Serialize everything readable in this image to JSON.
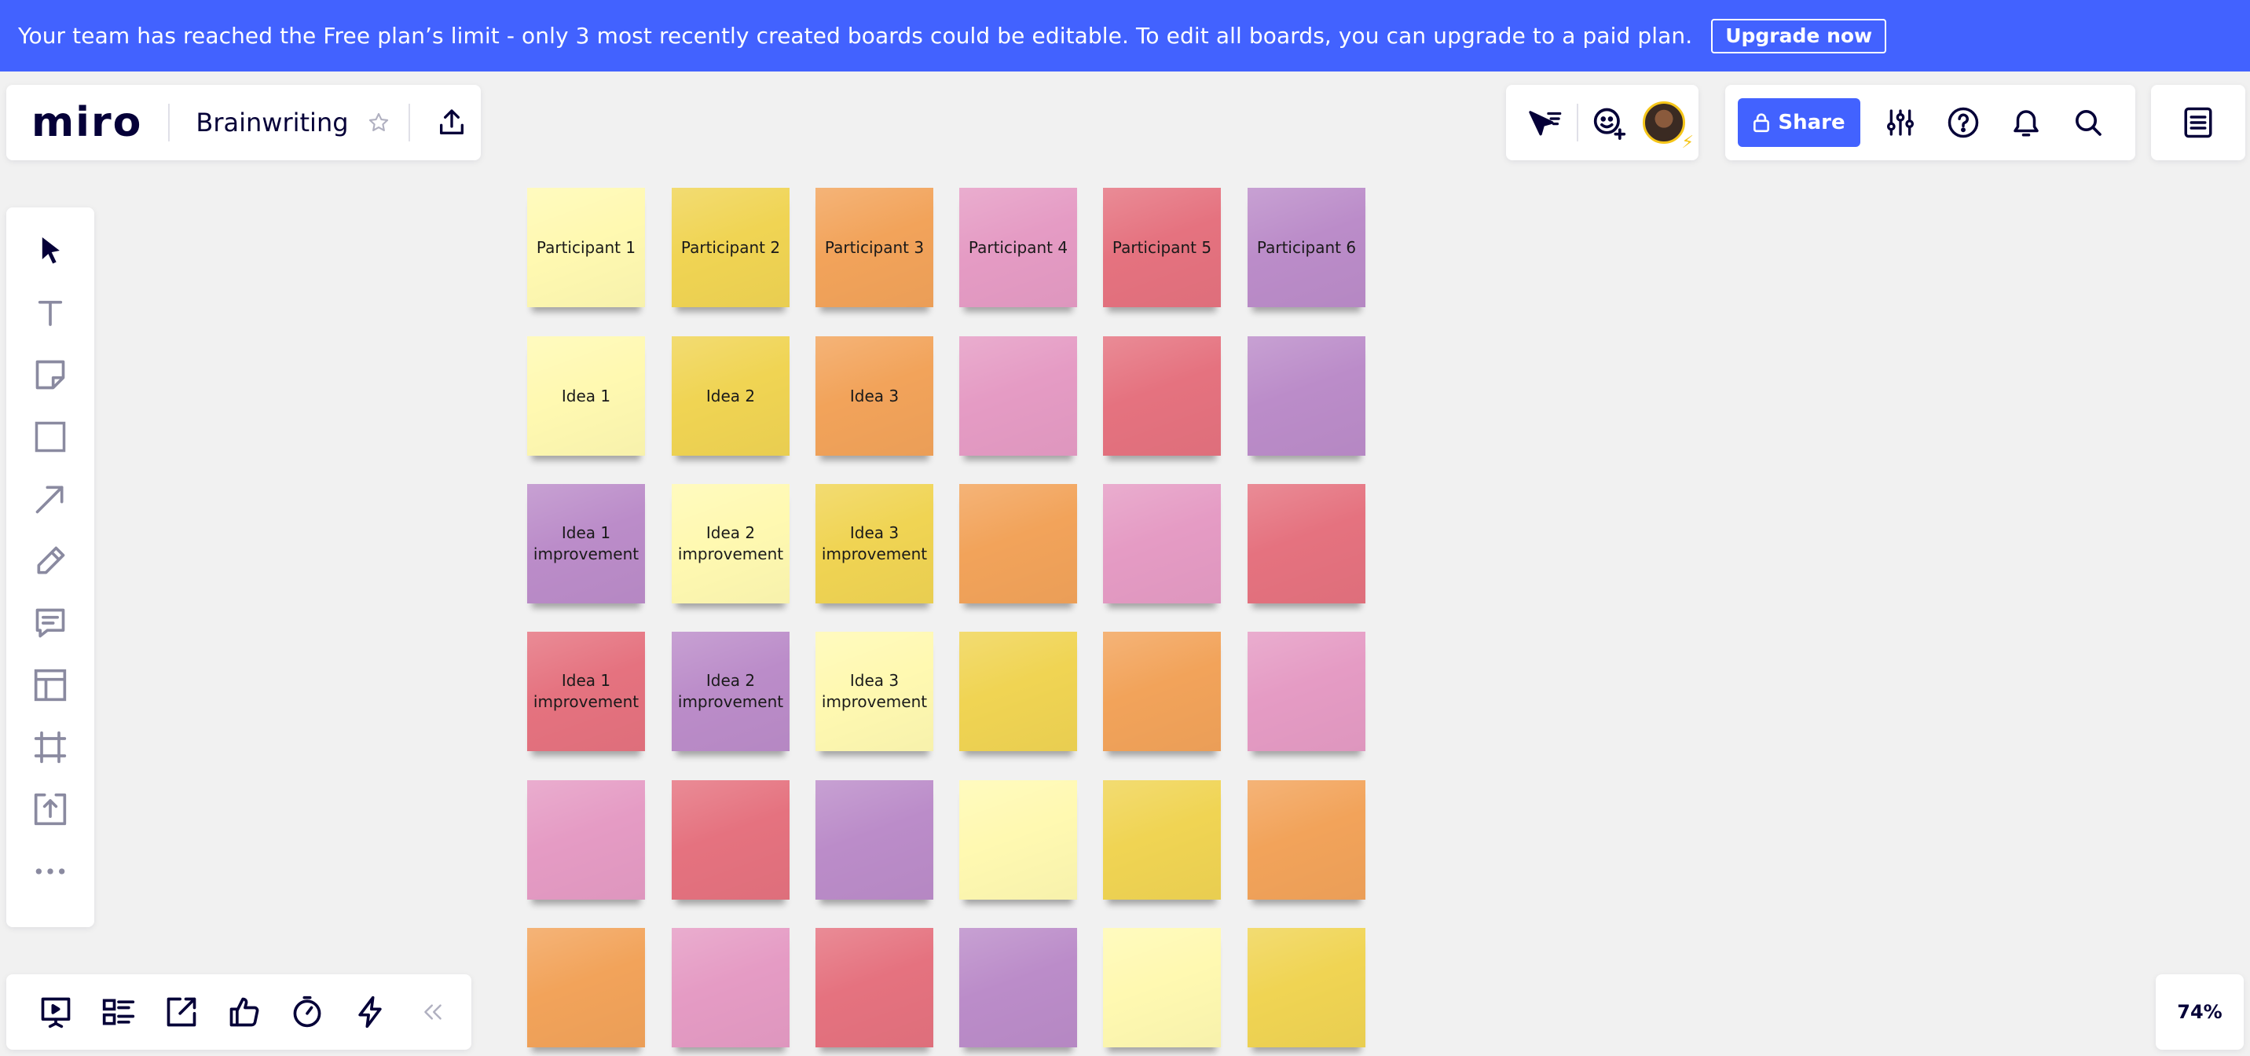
{
  "banner": {
    "message": "Your team has reached the Free plan’s limit - only 3 most recently created boards could be editable. To edit all boards, you can upgrade to a paid plan.",
    "upgrade_label": "Upgrade now"
  },
  "header": {
    "logo": "miro",
    "board_title": "Brainwriting",
    "star_icon": "star-icon",
    "share_label": "Share"
  },
  "zoom": {
    "level": "74%"
  },
  "colors": {
    "light_yellow": "#fff9b1",
    "yellow": "#f0d453",
    "orange": "#f2a35a",
    "pink": "#e59bc4",
    "red": "#e5727f",
    "purple": "#bb8cc9",
    "accent": "#4262ff"
  },
  "left_toolbar": [
    "select-icon",
    "text-icon",
    "sticky-note-icon",
    "shape-icon",
    "arrow-icon",
    "pen-icon",
    "comment-icon",
    "template-icon",
    "frame-icon",
    "upload-icon",
    "more-icon"
  ],
  "bottom_toolbar": [
    "presentation-icon",
    "board-list-icon",
    "share-screen-icon",
    "voting-icon",
    "timer-icon",
    "lightning-icon",
    "collapse-icon"
  ],
  "sticky_grid": [
    [
      {
        "text": "Participant 1",
        "color": "#fff9b1"
      },
      {
        "text": "Participant 2",
        "color": "#f0d453"
      },
      {
        "text": "Participant 3",
        "color": "#f2a35a"
      },
      {
        "text": "Participant 4",
        "color": "#e59bc4"
      },
      {
        "text": "Participant 5",
        "color": "#e5727f"
      },
      {
        "text": "Participant 6",
        "color": "#bb8cc9"
      }
    ],
    [
      {
        "text": "Idea 1",
        "color": "#fff9b1"
      },
      {
        "text": "Idea 2",
        "color": "#f0d453"
      },
      {
        "text": "Idea 3",
        "color": "#f2a35a"
      },
      {
        "text": "",
        "color": "#e59bc4"
      },
      {
        "text": "",
        "color": "#e5727f"
      },
      {
        "text": "",
        "color": "#bb8cc9"
      }
    ],
    [
      {
        "text": "Idea 1 improvement",
        "color": "#bb8cc9"
      },
      {
        "text": "Idea 2 improvement",
        "color": "#fff9b1"
      },
      {
        "text": "Idea 3 improvement",
        "color": "#f0d453"
      },
      {
        "text": "",
        "color": "#f2a35a"
      },
      {
        "text": "",
        "color": "#e59bc4"
      },
      {
        "text": "",
        "color": "#e5727f"
      }
    ],
    [
      {
        "text": "Idea 1 improvement",
        "color": "#e5727f"
      },
      {
        "text": "Idea 2 improvement",
        "color": "#bb8cc9"
      },
      {
        "text": "Idea 3 improvement",
        "color": "#fff9b1"
      },
      {
        "text": "",
        "color": "#f0d453"
      },
      {
        "text": "",
        "color": "#f2a35a"
      },
      {
        "text": "",
        "color": "#e59bc4"
      }
    ],
    [
      {
        "text": "",
        "color": "#e59bc4"
      },
      {
        "text": "",
        "color": "#e5727f"
      },
      {
        "text": "",
        "color": "#bb8cc9"
      },
      {
        "text": "",
        "color": "#fff9b1"
      },
      {
        "text": "",
        "color": "#f0d453"
      },
      {
        "text": "",
        "color": "#f2a35a"
      }
    ],
    [
      {
        "text": "",
        "color": "#f2a35a"
      },
      {
        "text": "",
        "color": "#e59bc4"
      },
      {
        "text": "",
        "color": "#e5727f"
      },
      {
        "text": "",
        "color": "#bb8cc9"
      },
      {
        "text": "",
        "color": "#fff9b1"
      },
      {
        "text": "",
        "color": "#f0d453"
      }
    ]
  ]
}
